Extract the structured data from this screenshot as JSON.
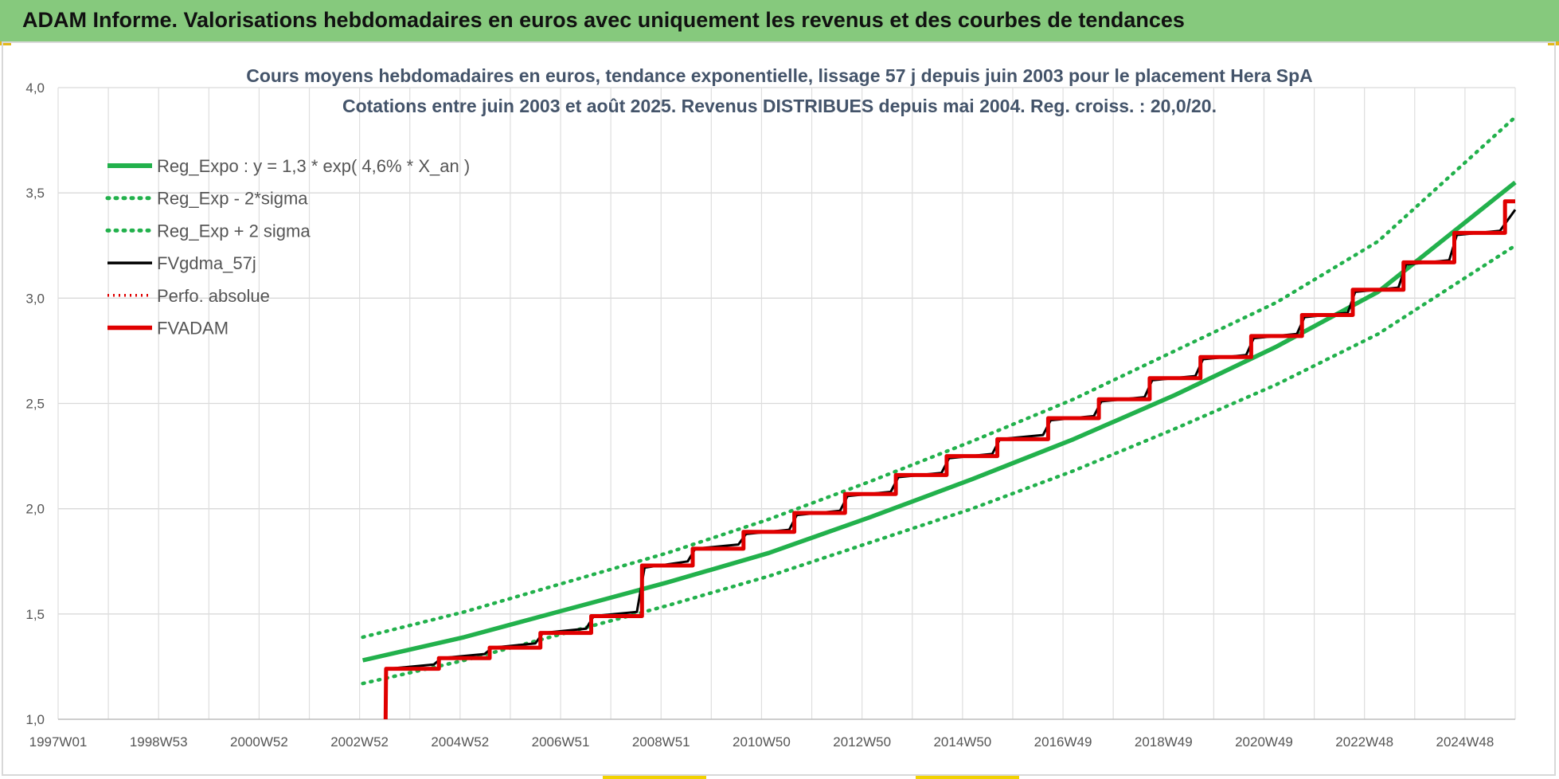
{
  "banner": {
    "title": "ADAM Informe. Valorisations hebdomadaires en euros avec uniquement les revenus et des courbes de tendances"
  },
  "chart_data": {
    "type": "line",
    "title": "Cours moyens hebdomadaires en euros, tendance exponentielle, lissage 57 j depuis juin 2003 pour le placement Hera SpA",
    "subtitle": "Cotations entre juin 2003 et août 2025. Revenus DISTRIBUES depuis mai 2004. Reg. croiss. : 20,0/20.",
    "xlabel": "",
    "ylabel": "",
    "x_tick_labels": [
      "1997W01",
      "1998W53",
      "2000W52",
      "2002W52",
      "2004W52",
      "2006W51",
      "2008W51",
      "2010W50",
      "2012W50",
      "2014W50",
      "2016W49",
      "2018W49",
      "2020W49",
      "2022W48",
      "2024W48"
    ],
    "x_range": [
      1997.0,
      2025.7
    ],
    "y_tick_labels": [
      "1,0",
      "1,5",
      "2,0",
      "2,5",
      "3,0",
      "3,5",
      "4,0"
    ],
    "ylim": [
      1.0,
      4.0
    ],
    "grid": true,
    "legend_position": "top-left",
    "series": [
      {
        "name": "Reg_Expo : y = 1,3 * exp( 4,6% *  X_an )",
        "color": "#22b14c",
        "style": "solid",
        "x": [
          2003.0,
          2005.0,
          2007.0,
          2009.0,
          2011.0,
          2013.0,
          2015.0,
          2017.0,
          2019.0,
          2021.0,
          2023.0,
          2025.7
        ],
        "y": [
          1.28,
          1.39,
          1.52,
          1.65,
          1.79,
          1.96,
          2.14,
          2.33,
          2.54,
          2.77,
          3.03,
          3.55
        ]
      },
      {
        "name": "Reg_Exp - 2*sigma",
        "color": "#22b14c",
        "style": "dotted",
        "x": [
          2003.0,
          2005.0,
          2007.0,
          2009.0,
          2011.0,
          2013.0,
          2015.0,
          2017.0,
          2019.0,
          2021.0,
          2023.0,
          2025.7
        ],
        "y": [
          1.17,
          1.28,
          1.41,
          1.54,
          1.68,
          1.84,
          2.0,
          2.18,
          2.38,
          2.59,
          2.83,
          3.25
        ]
      },
      {
        "name": "Reg_Exp + 2 sigma",
        "color": "#22b14c",
        "style": "dotted",
        "x": [
          2003.0,
          2005.0,
          2007.0,
          2009.0,
          2011.0,
          2013.0,
          2015.0,
          2017.0,
          2019.0,
          2021.0,
          2023.0,
          2025.7
        ],
        "y": [
          1.39,
          1.51,
          1.65,
          1.79,
          1.95,
          2.13,
          2.32,
          2.52,
          2.75,
          2.98,
          3.27,
          3.86
        ]
      },
      {
        "name": "FVgdma_57j",
        "color": "#000000",
        "style": "solid",
        "x": [
          2003.45,
          2003.5,
          2004.4,
          2004.55,
          2005.4,
          2005.55,
          2006.4,
          2006.55,
          2007.4,
          2007.55,
          2008.4,
          2008.55,
          2009.4,
          2009.55,
          2010.4,
          2010.55,
          2011.4,
          2011.55,
          2012.4,
          2012.55,
          2013.4,
          2013.55,
          2014.4,
          2014.55,
          2015.4,
          2015.55,
          2016.4,
          2016.55,
          2017.4,
          2017.55,
          2018.4,
          2018.55,
          2019.4,
          2019.55,
          2020.4,
          2020.55,
          2021.4,
          2021.55,
          2022.4,
          2022.55,
          2023.4,
          2023.55,
          2024.4,
          2024.55,
          2025.4,
          2025.7
        ],
        "y": [
          1.24,
          1.24,
          1.26,
          1.29,
          1.31,
          1.34,
          1.36,
          1.41,
          1.43,
          1.49,
          1.51,
          1.72,
          1.75,
          1.81,
          1.83,
          1.88,
          1.9,
          1.97,
          1.99,
          2.06,
          2.08,
          2.15,
          2.17,
          2.24,
          2.26,
          2.33,
          2.35,
          2.42,
          2.44,
          2.51,
          2.53,
          2.61,
          2.63,
          2.71,
          2.73,
          2.81,
          2.83,
          2.91,
          2.93,
          3.03,
          3.05,
          3.16,
          3.18,
          3.3,
          3.32,
          3.42
        ]
      },
      {
        "name": "Perfo. absolue",
        "color": "#e00000",
        "style": "dotted",
        "x": [
          2003.45,
          2003.46,
          2004.5,
          2004.5,
          2005.5,
          2005.5,
          2006.5,
          2006.5,
          2007.5,
          2007.5,
          2008.5,
          2008.5,
          2009.5,
          2009.5,
          2010.5,
          2010.5,
          2011.5,
          2011.5,
          2012.5,
          2012.5,
          2013.5,
          2013.5,
          2014.5,
          2014.5,
          2015.5,
          2015.5,
          2016.5,
          2016.5,
          2017.5,
          2017.5,
          2018.5,
          2018.5,
          2019.5,
          2019.5,
          2020.5,
          2020.5,
          2021.5,
          2021.5,
          2022.5,
          2022.5,
          2023.5,
          2023.5,
          2024.5,
          2024.5,
          2025.5,
          2025.5,
          2025.7
        ],
        "y": [
          1.0,
          1.24,
          1.24,
          1.29,
          1.29,
          1.34,
          1.34,
          1.41,
          1.41,
          1.49,
          1.49,
          1.73,
          1.73,
          1.81,
          1.81,
          1.89,
          1.89,
          1.98,
          1.98,
          2.07,
          2.07,
          2.16,
          2.16,
          2.25,
          2.25,
          2.33,
          2.33,
          2.43,
          2.43,
          2.52,
          2.52,
          2.62,
          2.62,
          2.72,
          2.72,
          2.82,
          2.82,
          2.92,
          2.92,
          3.04,
          3.04,
          3.17,
          3.17,
          3.31,
          3.31,
          3.46,
          3.46
        ]
      },
      {
        "name": "FVADAM",
        "color": "#e00000",
        "style": "solid",
        "x": [
          2003.45,
          2003.46,
          2004.5,
          2004.5,
          2005.5,
          2005.5,
          2006.5,
          2006.5,
          2007.5,
          2007.5,
          2008.5,
          2008.5,
          2009.5,
          2009.5,
          2010.5,
          2010.5,
          2011.5,
          2011.5,
          2012.5,
          2012.5,
          2013.5,
          2013.5,
          2014.5,
          2014.5,
          2015.5,
          2015.5,
          2016.5,
          2016.5,
          2017.5,
          2017.5,
          2018.5,
          2018.5,
          2019.5,
          2019.5,
          2020.5,
          2020.5,
          2021.5,
          2021.5,
          2022.5,
          2022.5,
          2023.5,
          2023.5,
          2024.5,
          2024.5,
          2025.5,
          2025.5,
          2025.7
        ],
        "y": [
          1.0,
          1.24,
          1.24,
          1.29,
          1.29,
          1.34,
          1.34,
          1.41,
          1.41,
          1.49,
          1.49,
          1.73,
          1.73,
          1.81,
          1.81,
          1.89,
          1.89,
          1.98,
          1.98,
          2.07,
          2.07,
          2.16,
          2.16,
          2.25,
          2.25,
          2.33,
          2.33,
          2.43,
          2.43,
          2.52,
          2.52,
          2.62,
          2.62,
          2.72,
          2.72,
          2.82,
          2.82,
          2.92,
          2.92,
          3.04,
          3.04,
          3.17,
          3.17,
          3.31,
          3.31,
          3.46,
          3.46
        ]
      }
    ]
  }
}
